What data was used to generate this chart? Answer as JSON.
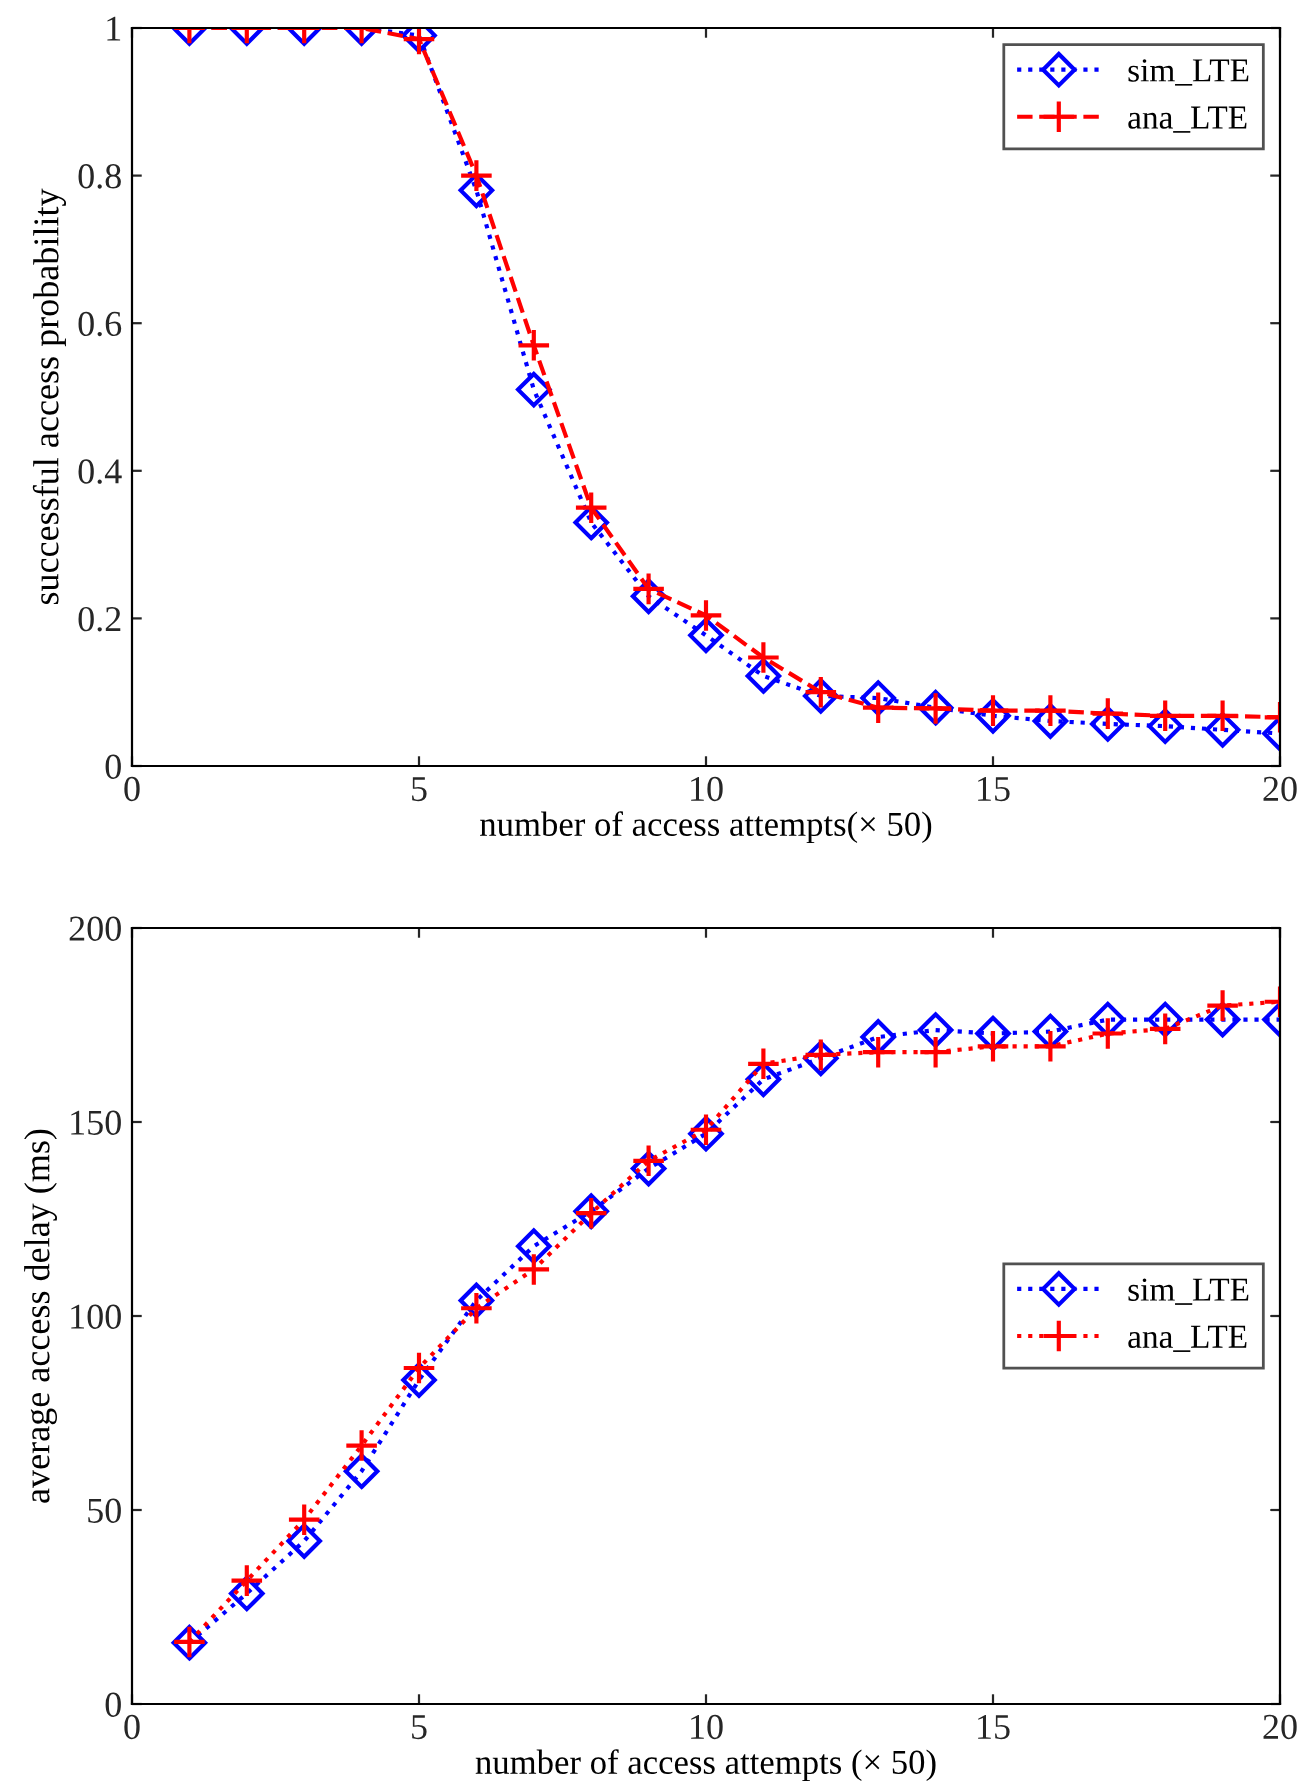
{
  "chart_data": [
    {
      "type": "line",
      "xlabel": "number of access attempts(× 50)",
      "ylabel": "successful access probability",
      "x": [
        1,
        2,
        3,
        4,
        5,
        6,
        7,
        8,
        9,
        10,
        11,
        12,
        13,
        14,
        15,
        16,
        17,
        18,
        19,
        20
      ],
      "xlim": [
        0,
        20
      ],
      "xticks": [
        0,
        5,
        10,
        15,
        20
      ],
      "ylim": [
        0,
        1
      ],
      "yticks": [
        0,
        0.2,
        0.4,
        0.6,
        0.8,
        1
      ],
      "grid": false,
      "legend": "top right",
      "series": [
        {
          "name": "sim_LTE",
          "color": "#0000ff",
          "marker": "diamond",
          "line_style": "dotted",
          "values": [
            1,
            1,
            1,
            1,
            0.99,
            0.78,
            0.51,
            0.33,
            0.23,
            0.177,
            0.122,
            0.095,
            0.092,
            0.079,
            0.068,
            0.061,
            0.057,
            0.054,
            0.049,
            0.044
          ]
        },
        {
          "name": "ana_LTE",
          "color": "#ff0000",
          "marker": "cross",
          "line_style": "dashed",
          "values": [
            1,
            1,
            1,
            1,
            0.985,
            0.8,
            0.57,
            0.35,
            0.24,
            0.204,
            0.147,
            0.1,
            0.079,
            0.078,
            0.075,
            0.075,
            0.071,
            0.068,
            0.068,
            0.066
          ]
        }
      ]
    },
    {
      "type": "line",
      "xlabel": "number of access attempts (× 50)",
      "ylabel": "average access delay (ms)",
      "x": [
        1,
        2,
        3,
        4,
        5,
        6,
        7,
        8,
        9,
        10,
        11,
        12,
        13,
        14,
        15,
        16,
        17,
        18,
        19,
        20
      ],
      "xlim": [
        0,
        20
      ],
      "xticks": [
        0,
        5,
        10,
        15,
        20
      ],
      "ylim": [
        0,
        200
      ],
      "yticks": [
        0,
        50,
        100,
        150,
        200
      ],
      "grid": false,
      "legend": "right",
      "series": [
        {
          "name": "sim_LTE",
          "color": "#0000ff",
          "marker": "diamond",
          "line_style": "dotted",
          "values": [
            15.8,
            28.5,
            42,
            60,
            83.5,
            104,
            118,
            127,
            138,
            147,
            161,
            166.4,
            171.9,
            173.7,
            172.8,
            173.3,
            176.4,
            176.4,
            176.4,
            176.4
          ]
        },
        {
          "name": "ana_LTE",
          "color": "#ff0000",
          "marker": "cross",
          "line_style": "dotted",
          "values": [
            16,
            31.8,
            47.5,
            66.6,
            86.6,
            102,
            112,
            126.5,
            140,
            148,
            165,
            167.3,
            168,
            168,
            169.5,
            169.5,
            172.8,
            174,
            180,
            181
          ]
        }
      ]
    }
  ]
}
